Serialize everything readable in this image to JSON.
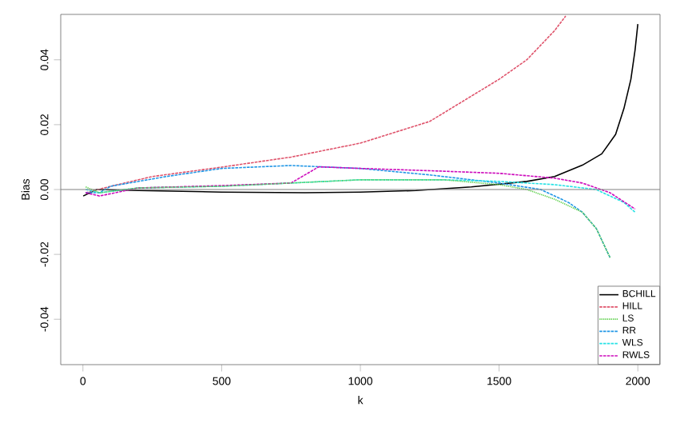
{
  "chart_data": {
    "type": "line",
    "xlabel": "k",
    "ylabel": "Bias",
    "xlim": [
      -80,
      2080
    ],
    "ylim": [
      -0.054,
      0.054
    ],
    "xticks": [
      0,
      500,
      1000,
      1500,
      2000
    ],
    "yticks": [
      {
        "value": -0.04,
        "label": "-0.04"
      },
      {
        "value": -0.02,
        "label": "-0.02"
      },
      {
        "value": 0,
        "label": "0.00"
      },
      {
        "value": 0.02,
        "label": "0.02"
      },
      {
        "value": 0.04,
        "label": "0.04"
      }
    ],
    "legend": "bottom right",
    "marker": "none",
    "ref_lines": [
      {
        "axis": "y",
        "value": 0,
        "color": "#808080"
      }
    ],
    "series": [
      {
        "name": "BCHILL",
        "color": "#000000",
        "line_style": "solid",
        "x": [
          1,
          50,
          200,
          500,
          800,
          1000,
          1200,
          1400,
          1600,
          1700,
          1800,
          1870,
          1920,
          1950,
          1975,
          1990,
          2000
        ],
        "values": [
          -0.002,
          0.0,
          -0.0003,
          -0.0008,
          -0.001,
          -0.0008,
          -0.0003,
          0.0008,
          0.0025,
          0.004,
          0.0075,
          0.011,
          0.017,
          0.025,
          0.034,
          0.043,
          0.051
        ]
      },
      {
        "name": "HILL",
        "color": "#DF536B",
        "line_style": "dashed",
        "x": [
          10,
          100,
          250,
          500,
          750,
          1000,
          1250,
          1500,
          1600,
          1700,
          1740
        ],
        "values": [
          -0.001,
          0.001,
          0.004,
          0.0069,
          0.01,
          0.0143,
          0.021,
          0.034,
          0.04,
          0.049,
          0.0535
        ]
      },
      {
        "name": "LS",
        "color": "#61D04F",
        "line_style": "dotted",
        "x": [
          10,
          60,
          200,
          500,
          750,
          1000,
          1300,
          1500,
          1600,
          1700,
          1800,
          1850,
          1900
        ],
        "values": [
          0.0008,
          -0.001,
          0.0005,
          0.001,
          0.002,
          0.003,
          0.003,
          0.0015,
          0.0,
          -0.003,
          -0.007,
          -0.012,
          -0.021
        ]
      },
      {
        "name": "RR",
        "color": "#2297E6",
        "line_style": "dashed",
        "x": [
          10,
          60,
          100,
          300,
          500,
          750,
          1000,
          1250,
          1500,
          1650,
          1750,
          1800,
          1850,
          1900
        ],
        "values": [
          -0.001,
          -0.001,
          0.001,
          0.004,
          0.0065,
          0.0074,
          0.0065,
          0.0045,
          0.002,
          0.0,
          -0.004,
          -0.007,
          -0.012,
          -0.021
        ]
      },
      {
        "name": "WLS",
        "color": "#28E2E5",
        "line_style": "dashed",
        "x": [
          10,
          60,
          200,
          500,
          750,
          1000,
          1300,
          1500,
          1700,
          1850,
          1950,
          1990
        ],
        "values": [
          0.0,
          -0.001,
          0.0005,
          0.001,
          0.002,
          0.003,
          0.003,
          0.0025,
          0.0015,
          0.0,
          -0.004,
          -0.007
        ]
      },
      {
        "name": "RWLS",
        "color": "#CD0BBC",
        "line_style": "dashed",
        "x": [
          10,
          60,
          200,
          500,
          750,
          850,
          1000,
          1250,
          1500,
          1700,
          1800,
          1900,
          1990
        ],
        "values": [
          -0.001,
          -0.002,
          0.0005,
          0.0012,
          0.002,
          0.007,
          0.0065,
          0.0058,
          0.005,
          0.0035,
          0.002,
          -0.001,
          -0.006
        ]
      }
    ]
  }
}
